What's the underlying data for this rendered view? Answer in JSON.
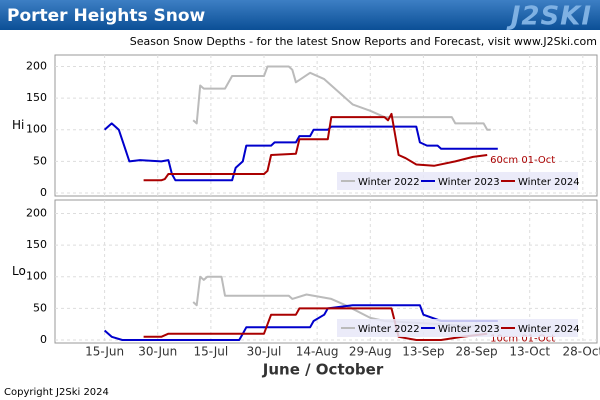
{
  "header": {
    "title": "Porter Heights Snow",
    "logo": "J2SKI"
  },
  "subtitle": "Season Snow Depths - for the latest Snow Reports and Forecast, visit www.J2Ski.com",
  "xlabel": "June / October",
  "footer": "Copyright J2Ski 2024",
  "chart_data": [
    {
      "type": "line",
      "ylabel": "Hi",
      "ylim": [
        0,
        215
      ],
      "yticks": [
        0,
        50,
        100,
        150,
        200
      ],
      "xlim": [
        "06-01",
        "11-01"
      ],
      "xticks": [
        "06-15",
        "06-30",
        "07-15",
        "07-30",
        "08-14",
        "08-29",
        "09-13",
        "09-28",
        "10-13",
        "10-28"
      ],
      "grid": true,
      "legend": "lower right",
      "series": [
        {
          "name": "Winter 2022",
          "color": "#bbbbbb",
          "x": [
            "07-10",
            "07-11",
            "07-12",
            "07-13",
            "07-14",
            "07-19",
            "07-21",
            "07-30",
            "07-31",
            "08-06",
            "08-07",
            "08-08",
            "08-12",
            "08-16",
            "08-20",
            "08-24",
            "08-29",
            "09-02",
            "09-21",
            "09-22",
            "09-30",
            "10-01",
            "10-02"
          ],
          "values": [
            115,
            110,
            170,
            165,
            165,
            165,
            185,
            185,
            200,
            200,
            195,
            175,
            190,
            180,
            160,
            140,
            130,
            120,
            120,
            110,
            110,
            100,
            100
          ]
        },
        {
          "name": "Winter 2023",
          "color": "#0000cc",
          "x": [
            "06-15",
            "06-17",
            "06-19",
            "06-22",
            "06-25",
            "07-01",
            "07-03",
            "07-04",
            "07-05",
            "07-21",
            "07-22",
            "07-24",
            "07-25",
            "08-01",
            "08-02",
            "08-08",
            "08-09",
            "08-12",
            "08-13",
            "08-17",
            "08-18",
            "09-11",
            "09-12",
            "09-14",
            "09-17",
            "09-18",
            "10-04"
          ],
          "values": [
            100,
            110,
            100,
            50,
            52,
            50,
            52,
            30,
            20,
            20,
            40,
            50,
            75,
            75,
            80,
            80,
            90,
            90,
            100,
            100,
            105,
            105,
            80,
            75,
            75,
            70,
            70
          ]
        },
        {
          "name": "Winter 2024",
          "color": "#aa0000",
          "x": [
            "06-26",
            "07-01",
            "07-02",
            "07-03",
            "07-30",
            "07-31",
            "08-01",
            "08-08",
            "08-09",
            "08-17",
            "08-18",
            "09-02",
            "09-03",
            "09-04",
            "09-06",
            "09-08",
            "09-11",
            "09-16",
            "09-22",
            "09-27",
            "10-01"
          ],
          "values": [
            20,
            20,
            22,
            30,
            30,
            35,
            60,
            62,
            85,
            85,
            120,
            120,
            115,
            125,
            60,
            55,
            45,
            43,
            50,
            57,
            60
          ]
        }
      ],
      "annotations": [
        {
          "text": "60cm 01-Oct",
          "x": "10-01",
          "y": 60,
          "color": "#aa0000"
        }
      ]
    },
    {
      "type": "line",
      "ylabel": "Lo",
      "ylim": [
        0,
        215
      ],
      "yticks": [
        0,
        50,
        100,
        150,
        200
      ],
      "xlim": [
        "06-01",
        "11-01"
      ],
      "xticks": [
        {
          "value": "06-15",
          "label": "15-Jun"
        },
        {
          "value": "06-30",
          "label": "30-Jun"
        },
        {
          "value": "07-15",
          "label": "15-Jul"
        },
        {
          "value": "07-30",
          "label": "30-Jul"
        },
        {
          "value": "08-14",
          "label": "14-Aug"
        },
        {
          "value": "08-29",
          "label": "29-Aug"
        },
        {
          "value": "09-13",
          "label": "13-Sep"
        },
        {
          "value": "09-28",
          "label": "28-Sep"
        },
        {
          "value": "10-13",
          "label": "13-Oct"
        },
        {
          "value": "10-28",
          "label": "28-Oct"
        }
      ],
      "grid": true,
      "legend": "lower right",
      "series": [
        {
          "name": "Winter 2022",
          "color": "#bbbbbb",
          "x": [
            "07-10",
            "07-11",
            "07-12",
            "07-13",
            "07-14",
            "07-18",
            "07-19",
            "08-06",
            "08-07",
            "08-11",
            "08-18",
            "08-22",
            "08-29",
            "09-02",
            "09-18",
            "10-01",
            "10-02"
          ],
          "values": [
            60,
            55,
            100,
            95,
            100,
            100,
            70,
            70,
            65,
            72,
            65,
            55,
            35,
            30,
            25,
            20,
            20
          ]
        },
        {
          "name": "Winter 2023",
          "color": "#0000cc",
          "x": [
            "06-15",
            "06-17",
            "06-20",
            "07-23",
            "07-24",
            "07-25",
            "08-12",
            "08-13",
            "08-16",
            "08-17",
            "08-24",
            "09-12",
            "09-13",
            "09-18",
            "10-04"
          ],
          "values": [
            15,
            5,
            0,
            0,
            10,
            20,
            20,
            30,
            40,
            50,
            55,
            55,
            40,
            30,
            30
          ]
        },
        {
          "name": "Winter 2024",
          "color": "#aa0000",
          "x": [
            "06-26",
            "07-01",
            "07-03",
            "07-30",
            "08-01",
            "08-08",
            "08-09",
            "09-04",
            "09-06",
            "09-11",
            "09-18",
            "09-24",
            "10-01"
          ],
          "values": [
            5,
            5,
            10,
            10,
            40,
            40,
            50,
            50,
            5,
            0,
            0,
            5,
            10
          ]
        }
      ],
      "annotations": [
        {
          "text": "10cm 01-Oct",
          "x": "10-01",
          "y": 10,
          "color": "#aa0000"
        }
      ]
    }
  ]
}
